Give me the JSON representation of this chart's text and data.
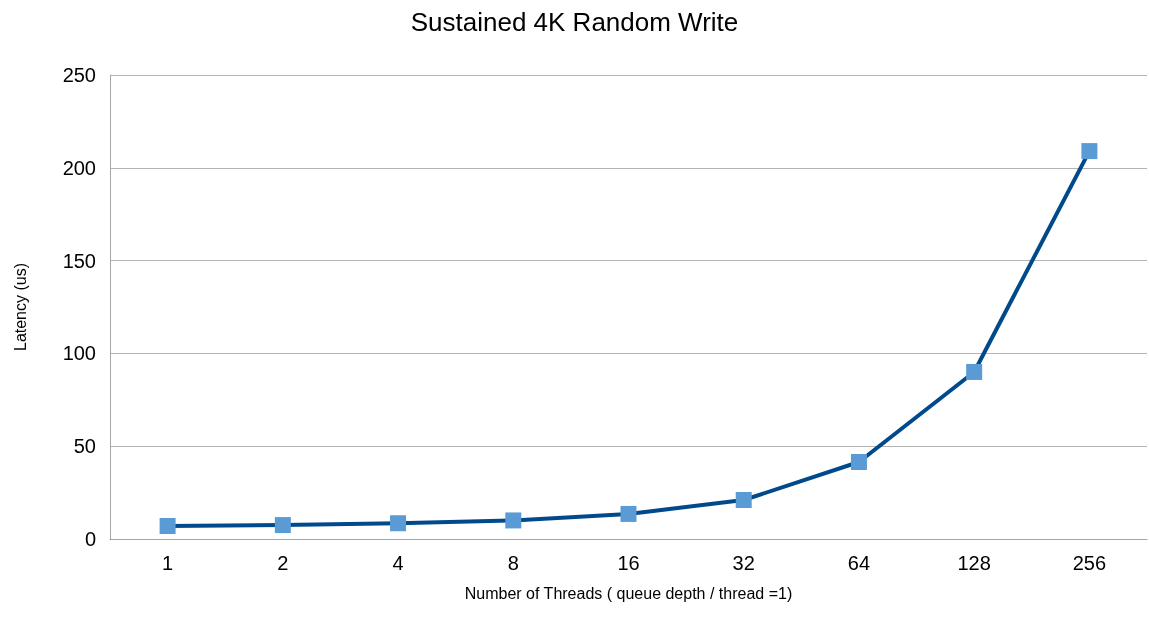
{
  "chart_data": {
    "type": "line",
    "title": "Sustained 4K Random Write",
    "xlabel": "Number of Threads ( queue depth / thread =1)",
    "ylabel": "Latency (us)",
    "categories": [
      "1",
      "2",
      "4",
      "8",
      "16",
      "32",
      "64",
      "128",
      "256"
    ],
    "series": [
      {
        "color": "#004a8c",
        "colors": [
          "#5b9bd5",
          "#5b9bd5",
          "#5b9bd5",
          "#5b9bd5",
          "#5b9bd5",
          "#5b9bd5",
          "#5b9bd5",
          "#5b9bd5",
          "#5b9bd5"
        ],
        "values": [
          7,
          7.5,
          8.5,
          10,
          13.5,
          21,
          41.5,
          90,
          209
        ]
      }
    ],
    "ylim": [
      0,
      250
    ],
    "yticks": [
      0,
      50,
      100,
      150,
      200,
      250
    ],
    "grid": "y",
    "marker": "square",
    "line_style": "solid"
  }
}
